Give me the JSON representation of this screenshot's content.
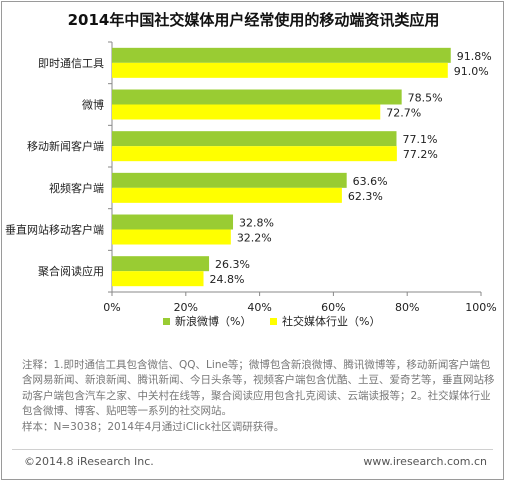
{
  "title": "2014年中国社交媒体用户经常使用的移动端资讯类应用",
  "chart_data": {
    "type": "bar",
    "orientation": "horizontal",
    "categories": [
      "即时通信工具",
      "微博",
      "移动新闻客户端",
      "视频客户端",
      "垂直网站移动客户端",
      "聚合阅读应用"
    ],
    "series": [
      {
        "name": "新浪微博（%）",
        "values": [
          91.8,
          78.5,
          77.1,
          63.6,
          32.8,
          26.3
        ],
        "color": "#99cc33"
      },
      {
        "name": "社交媒体行业（%）",
        "values": [
          91.0,
          72.7,
          77.2,
          62.3,
          32.2,
          24.8
        ],
        "color": "#ffff00"
      }
    ],
    "value_labels": [
      [
        "91.8%",
        "78.5%",
        "77.1%",
        "63.6%",
        "32.8%",
        "26.3%"
      ],
      [
        "91.0%",
        "72.7%",
        "77.2%",
        "62.3%",
        "32.2%",
        "24.8%"
      ]
    ],
    "xlim": [
      0,
      100
    ],
    "xticks": [
      "0%",
      "20%",
      "40%",
      "60%",
      "80%",
      "100%"
    ],
    "grid": false,
    "legend_position": "bottom"
  },
  "notes": [
    "注释：1.即时通信工具包含微信、QQ、Line等；微博包含新浪微博、腾讯微博等，移动新闻客户端包含网易新闻、新浪新闻、腾讯新闻、今日头条等，视频客户端包含优酷、土豆、爱奇艺等，垂直网站移动客户端包含汽车之家、中关村在线等，聚合阅读应用包含扎克阅读、云端读报等；2。社交媒体行业包含微博、博客、贴吧等一系列的社交网站。",
    "样本：N=3038；2014年4月通过iClick社区调研获得。"
  ],
  "footer": {
    "left": "©2014.8 iResearch Inc.",
    "right": "www.iresearch.com.cn"
  }
}
